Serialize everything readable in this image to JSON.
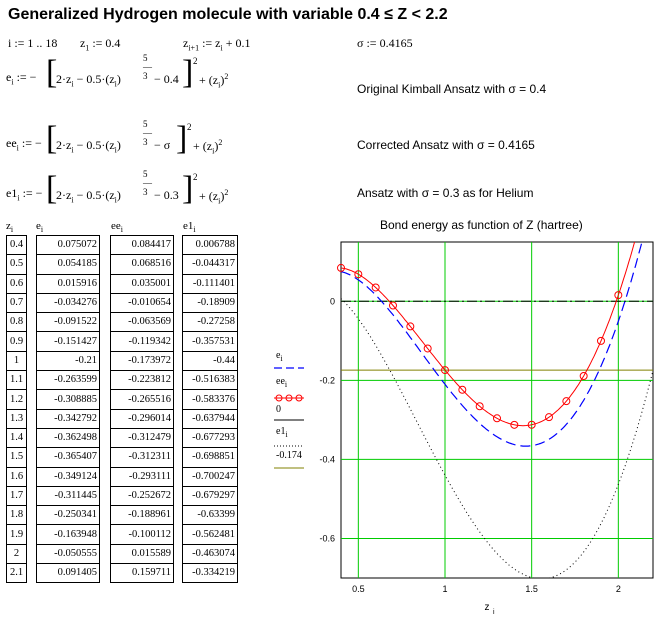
{
  "title": "Generalized Hydrogen molecule with variable 0.4 ≤ Z < 2.2",
  "defs": {
    "i_range": "i := 1 .. 18",
    "z1": "z := 0.4",
    "z_next": "z := z + 0.1",
    "sigma": "σ := 0.4165"
  },
  "formulas": [
    {
      "lhs": "e",
      "sub": "i",
      "const": "0.4",
      "desc": "Original Kimball Ansatz with σ = 0.4"
    },
    {
      "lhs": "ee",
      "sub": "i",
      "const": "σ",
      "desc": "Corrected Ansatz with σ = 0.4165"
    },
    {
      "lhs": "e1",
      "sub": "i",
      "const": "0.3",
      "desc": "Ansatz with σ = 0.3 as for Helium"
    }
  ],
  "formula_parts": {
    "coef": "2·z",
    "mid": "− 0.5·(z",
    "exp_num": "5",
    "exp_den": "3",
    "sq": "2",
    "plus": "+ (z"
  },
  "table": {
    "headers": [
      "z",
      "e",
      "ee",
      "e1"
    ],
    "z": [
      "0.4",
      "0.5",
      "0.6",
      "0.7",
      "0.8",
      "0.9",
      "1",
      "1.1",
      "1.2",
      "1.3",
      "1.4",
      "1.5",
      "1.6",
      "1.7",
      "1.8",
      "1.9",
      "2",
      "2.1"
    ],
    "e": [
      "0.075072",
      "0.054185",
      "0.015916",
      "-0.034276",
      "-0.091522",
      "-0.151427",
      "-0.21",
      "-0.263599",
      "-0.308885",
      "-0.342792",
      "-0.362498",
      "-0.365407",
      "-0.349124",
      "-0.311445",
      "-0.250341",
      "-0.163948",
      "-0.050555",
      "0.091405"
    ],
    "ee": [
      "0.084417",
      "0.068516",
      "0.035001",
      "-0.010654",
      "-0.063569",
      "-0.119342",
      "-0.173972",
      "-0.223812",
      "-0.265516",
      "-0.296014",
      "-0.312479",
      "-0.312311",
      "-0.293111",
      "-0.252672",
      "-0.188961",
      "-0.100112",
      "0.015589",
      "0.159711"
    ],
    "e1": [
      "0.006788",
      "-0.044317",
      "-0.111401",
      "-0.18909",
      "-0.27258",
      "-0.357531",
      "-0.44",
      "-0.516383",
      "-0.583376",
      "-0.637944",
      "-0.677293",
      "-0.698851",
      "-0.700247",
      "-0.679297",
      "-0.63399",
      "-0.562481",
      "-0.463074",
      "-0.334219"
    ]
  },
  "legend": {
    "e": "e",
    "ee": "ee",
    "zero": "0",
    "e1": "e1",
    "const": "-0.174"
  },
  "chart_data": {
    "type": "line",
    "title": "Bond energy as function of Z (hartree)",
    "xlabel": "z",
    "xlim": [
      0.4,
      2.2
    ],
    "ylim": [
      -0.7,
      0.15
    ],
    "xticks": [
      0.5,
      1,
      1.5,
      2
    ],
    "yticks": [
      0,
      -0.2,
      -0.4,
      -0.6
    ],
    "xtick_labels": [
      "0.5",
      "1",
      "1.5",
      "2"
    ],
    "ytick_labels": [
      "0",
      "-0.2",
      "-0.4",
      "-0.6"
    ],
    "grid": true,
    "colors": {
      "e": "#0000ff",
      "ee": "#ff0000",
      "zero": "#000000",
      "e1": "#000000",
      "const": "#808000",
      "grid": "#00cc00"
    },
    "series": [
      {
        "name": "e",
        "style": "dashed"
      },
      {
        "name": "ee",
        "style": "solid-markers"
      },
      {
        "name": "0",
        "style": "dash-dot"
      },
      {
        "name": "e1",
        "style": "dotted"
      },
      {
        "name": "-0.174",
        "style": "solid",
        "value": -0.174
      }
    ]
  }
}
